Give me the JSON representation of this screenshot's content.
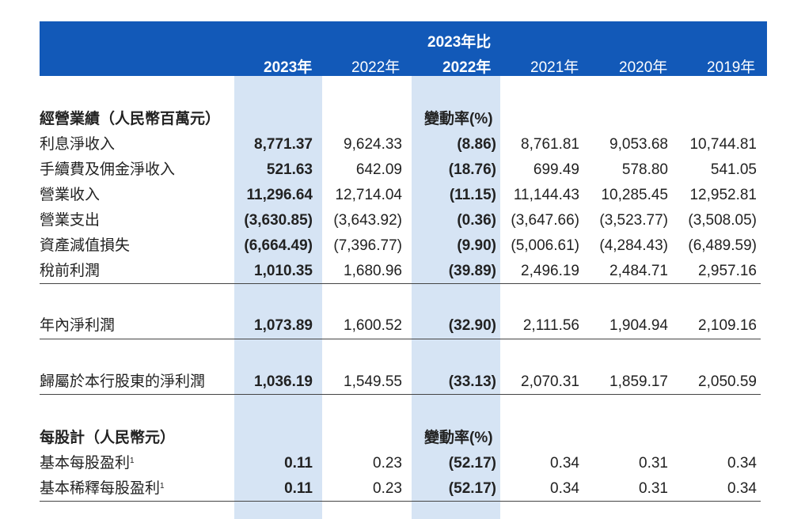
{
  "header": {
    "compare_label": "2023年比",
    "cols": [
      "2023年",
      "2022年",
      "2022年",
      "2021年",
      "2020年",
      "2019年"
    ]
  },
  "section1": {
    "title": "經營業績（人民幣百萬元）",
    "change_label": "變動率(%)",
    "rows": [
      {
        "label": "利息淨收入",
        "values": [
          "8,771.37",
          "9,624.33",
          "(8.86)",
          "8,761.81",
          "9,053.68",
          "10,744.81"
        ]
      },
      {
        "label": "手續費及佣金淨收入",
        "values": [
          "521.63",
          "642.09",
          "(18.76)",
          "699.49",
          "578.80",
          "541.05"
        ]
      },
      {
        "label": "營業收入",
        "values": [
          "11,296.64",
          "12,714.04",
          "(11.15)",
          "11,144.43",
          "10,285.45",
          "12,952.81"
        ]
      },
      {
        "label": "營業支出",
        "values": [
          "(3,630.85)",
          "(3,643.92)",
          "(0.36)",
          "(3,647.66)",
          "(3,523.77)",
          "(3,508.05)"
        ]
      },
      {
        "label": "資產減值損失",
        "values": [
          "(6,664.49)",
          "(7,396.77)",
          "(9.90)",
          "(5,006.61)",
          "(4,284.43)",
          "(6,489.59)"
        ]
      },
      {
        "label": "稅前利潤",
        "values": [
          "1,010.35",
          "1,680.96",
          "(39.89)",
          "2,496.19",
          "2,484.71",
          "2,957.16"
        ]
      },
      {
        "label": "年內淨利潤",
        "values": [
          "1,073.89",
          "1,600.52",
          "(32.90)",
          "2,111.56",
          "1,904.94",
          "2,109.16"
        ]
      },
      {
        "label": "歸屬於本行股東的淨利潤",
        "values": [
          "1,036.19",
          "1,549.55",
          "(33.13)",
          "2,070.31",
          "1,859.17",
          "2,050.59"
        ]
      }
    ]
  },
  "section2": {
    "title": "每股計（人民幣元）",
    "change_label": "變動率(%)",
    "footnote_mark": "1",
    "rows": [
      {
        "label": "基本每股盈利",
        "values": [
          "0.11",
          "0.23",
          "(52.17)",
          "0.34",
          "0.31",
          "0.34"
        ]
      },
      {
        "label": "基本稀釋每股盈利",
        "values": [
          "0.11",
          "0.23",
          "(52.17)",
          "0.34",
          "0.31",
          "0.34"
        ]
      }
    ]
  }
}
